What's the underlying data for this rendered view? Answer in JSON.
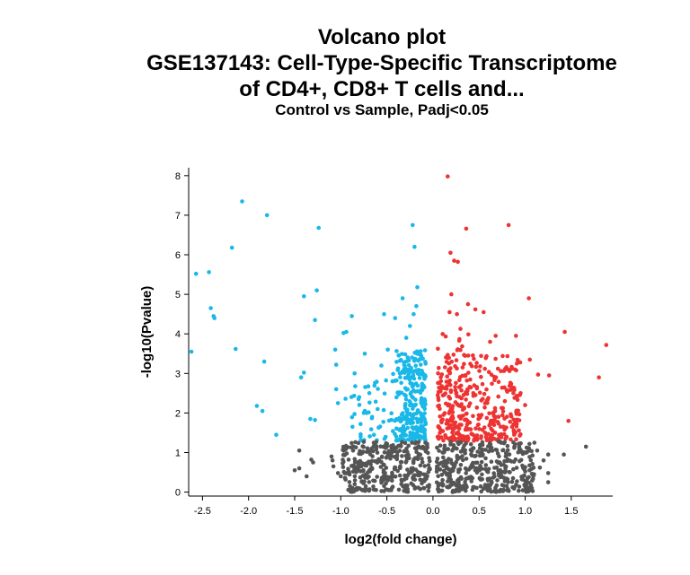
{
  "titles": {
    "line1": "Volcano plot",
    "line2": "GSE137143: Cell-Type-Specific Transcriptome",
    "line3": "of CD4+, CD8+ T cells and...",
    "subtitle": "Control vs Sample, Padj<0.05"
  },
  "chart_data": {
    "type": "scatter",
    "title": "Volcano plot",
    "subtitle": "Control vs Sample, Padj<0.05",
    "xlabel": "log2(fold change)",
    "ylabel": "-log10(Pvalue)",
    "xlim": [
      -2.65,
      1.95
    ],
    "ylim": [
      -0.1,
      8.2
    ],
    "x_ticks": [
      "-2.5",
      "-2.0",
      "-1.5",
      "-1.0",
      "-0.5",
      "0.0",
      "0.5",
      "1.0",
      "1.5"
    ],
    "x_tick_values": [
      -2.5,
      -2.0,
      -1.5,
      -1.0,
      -0.5,
      0.0,
      0.5,
      1.0,
      1.5
    ],
    "y_ticks": [
      "0",
      "1",
      "2",
      "3",
      "4",
      "5",
      "6",
      "7",
      "8"
    ],
    "y_tick_values": [
      0,
      1,
      2,
      3,
      4,
      5,
      6,
      7,
      8
    ],
    "grid": false,
    "colors": {
      "down": "#1ab8e8",
      "up": "#ee3333",
      "ns": "#555555"
    },
    "series": [
      {
        "name": "down",
        "points": [
          [
            -2.62,
            3.55
          ],
          [
            -2.57,
            5.52
          ],
          [
            -2.43,
            5.56
          ],
          [
            -2.41,
            4.65
          ],
          [
            -2.38,
            4.45
          ],
          [
            -2.37,
            4.4
          ],
          [
            -2.18,
            6.18
          ],
          [
            -2.14,
            3.62
          ],
          [
            -2.07,
            7.35
          ],
          [
            -1.91,
            2.18
          ],
          [
            -1.83,
            3.3
          ],
          [
            -1.8,
            7.0
          ],
          [
            -1.85,
            2.05
          ],
          [
            -1.7,
            1.45
          ],
          [
            -1.4,
            4.95
          ],
          [
            -1.4,
            3.02
          ],
          [
            -1.43,
            2.9
          ],
          [
            -1.33,
            1.85
          ],
          [
            -1.28,
            1.82
          ],
          [
            -1.28,
            4.35
          ],
          [
            -1.26,
            5.1
          ],
          [
            -1.24,
            6.68
          ],
          [
            -1.06,
            3.6
          ],
          [
            -1.05,
            3.22
          ],
          [
            -1.05,
            2.6
          ],
          [
            -1.03,
            2.25
          ],
          [
            -0.97,
            4.02
          ],
          [
            -0.94,
            4.05
          ],
          [
            -0.88,
            4.45
          ],
          [
            -0.85,
            3.0
          ],
          [
            -0.8,
            2.4
          ],
          [
            -0.74,
            3.5
          ],
          [
            -0.72,
            2.0
          ],
          [
            -0.69,
            2.5
          ],
          [
            -0.66,
            1.9
          ],
          [
            -0.64,
            1.45
          ],
          [
            -0.6,
            2.1
          ],
          [
            -0.56,
            3.2
          ],
          [
            -0.53,
            4.5
          ],
          [
            -0.49,
            3.6
          ],
          [
            -0.44,
            2.8
          ],
          [
            -0.41,
            4.4
          ],
          [
            -0.36,
            3.0
          ],
          [
            -0.33,
            4.9
          ],
          [
            -0.22,
            6.75
          ],
          [
            -0.2,
            6.2
          ],
          [
            -0.17,
            5.18
          ],
          [
            -0.18,
            4.7
          ],
          [
            -0.21,
            4.5
          ],
          [
            -0.25,
            4.2
          ],
          [
            -0.29,
            3.9
          ]
        ]
      },
      {
        "name": "up",
        "points": [
          [
            0.16,
            7.98
          ],
          [
            0.19,
            6.05
          ],
          [
            0.23,
            5.85
          ],
          [
            0.27,
            5.82
          ],
          [
            0.36,
            6.66
          ],
          [
            0.82,
            6.75
          ],
          [
            0.2,
            5.0
          ],
          [
            0.18,
            4.55
          ],
          [
            0.26,
            4.5
          ],
          [
            0.38,
            4.75
          ],
          [
            0.46,
            4.62
          ],
          [
            0.55,
            4.55
          ],
          [
            1.04,
            4.9
          ],
          [
            0.68,
            3.95
          ],
          [
            0.62,
            3.8
          ],
          [
            0.91,
            3.25
          ],
          [
            0.89,
            3.1
          ],
          [
            1.05,
            3.35
          ],
          [
            1.14,
            2.97
          ],
          [
            1.26,
            2.95
          ],
          [
            1.43,
            4.05
          ],
          [
            0.9,
            3.95
          ],
          [
            1.47,
            1.8
          ],
          [
            1.8,
            2.9
          ],
          [
            1.88,
            3.72
          ],
          [
            0.95,
            2.5
          ],
          [
            1.0,
            2.2
          ],
          [
            0.78,
            2.3
          ]
        ]
      },
      {
        "name": "ns",
        "points": [
          [
            -1.45,
            1.05
          ],
          [
            -1.5,
            0.55
          ],
          [
            -1.45,
            0.6
          ],
          [
            -1.37,
            0.4
          ],
          [
            -1.32,
            0.82
          ],
          [
            -1.3,
            0.75
          ],
          [
            -1.1,
            0.9
          ],
          [
            -1.08,
            0.65
          ],
          [
            -1.03,
            0.48
          ],
          [
            -1.0,
            0.4
          ],
          [
            -1.09,
            0.8
          ],
          [
            1.13,
            1.05
          ],
          [
            1.2,
            0.8
          ],
          [
            1.25,
            0.95
          ],
          [
            1.42,
            0.95
          ],
          [
            1.25,
            0.48
          ],
          [
            1.25,
            0.25
          ],
          [
            1.66,
            1.15
          ],
          [
            1.16,
            0.62
          ],
          [
            1.1,
            1.25
          ],
          [
            1.05,
            1.05
          ]
        ]
      }
    ],
    "generated_clusters": [
      {
        "name": "down",
        "x_range": [
          -0.4,
          -0.08
        ],
        "y_range": [
          1.3,
          3.6
        ],
        "count": 260,
        "seed": 11
      },
      {
        "name": "down",
        "x_range": [
          -1.0,
          -0.4
        ],
        "y_range": [
          1.3,
          3.0
        ],
        "count": 45,
        "seed": 12
      },
      {
        "name": "up",
        "x_range": [
          0.05,
          0.95
        ],
        "y_range": [
          1.3,
          3.5
        ],
        "count": 330,
        "seed": 21
      },
      {
        "name": "up",
        "x_range": [
          0.05,
          0.4
        ],
        "y_range": [
          1.3,
          4.2
        ],
        "count": 60,
        "seed": 22
      },
      {
        "name": "ns",
        "x_range": [
          -0.98,
          -0.03
        ],
        "y_range": [
          0.0,
          1.28
        ],
        "count": 340,
        "seed": 31
      },
      {
        "name": "ns",
        "x_range": [
          0.03,
          1.1
        ],
        "y_range": [
          0.0,
          1.28
        ],
        "count": 380,
        "seed": 32
      }
    ]
  }
}
